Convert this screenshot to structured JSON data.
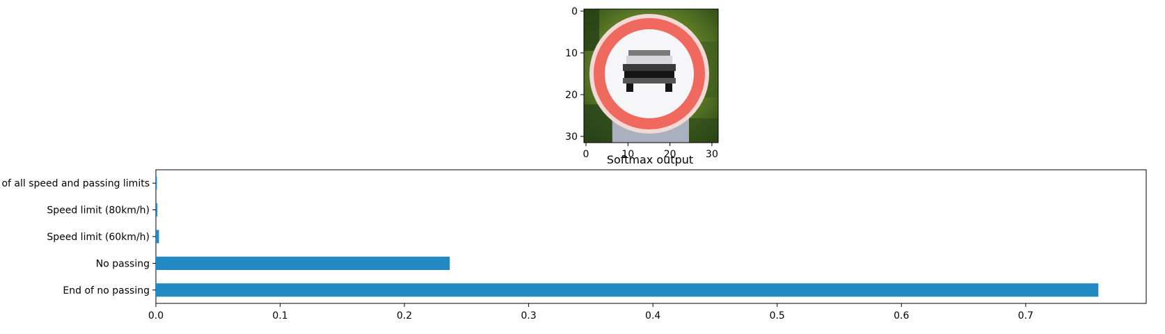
{
  "chart_data": [
    {
      "type": "image",
      "title": "",
      "description": "Traffic sign image (No passing sign)",
      "xlim": [
        0,
        31
      ],
      "ylim": [
        31,
        0
      ],
      "xticks": [
        "0",
        "10",
        "20",
        "30"
      ],
      "yticks": [
        "0",
        "10",
        "20",
        "30"
      ],
      "colors": {
        "background_green": "#5f7a2a",
        "ring_red": "#f0695f",
        "inner_white": "#f6f6f8",
        "car_black": "#151515",
        "post_gray": "#aab0bf"
      }
    },
    {
      "type": "bar",
      "orientation": "horizontal",
      "title": "Softmax output",
      "xlabel": "",
      "ylabel": "",
      "categories": [
        "End of no passing",
        "No passing",
        "Speed limit (60km/h)",
        "Speed limit (80km/h)",
        "End of all speed and passing limits"
      ],
      "values": [
        0.7585,
        0.2365,
        0.0025,
        0.0012,
        0.0008
      ],
      "xlim": [
        0,
        0.797
      ],
      "xticks": [
        "0.0",
        "0.1",
        "0.2",
        "0.3",
        "0.4",
        "0.5",
        "0.6",
        "0.7"
      ],
      "grid": false,
      "bar_color": "#2389c3"
    }
  ]
}
